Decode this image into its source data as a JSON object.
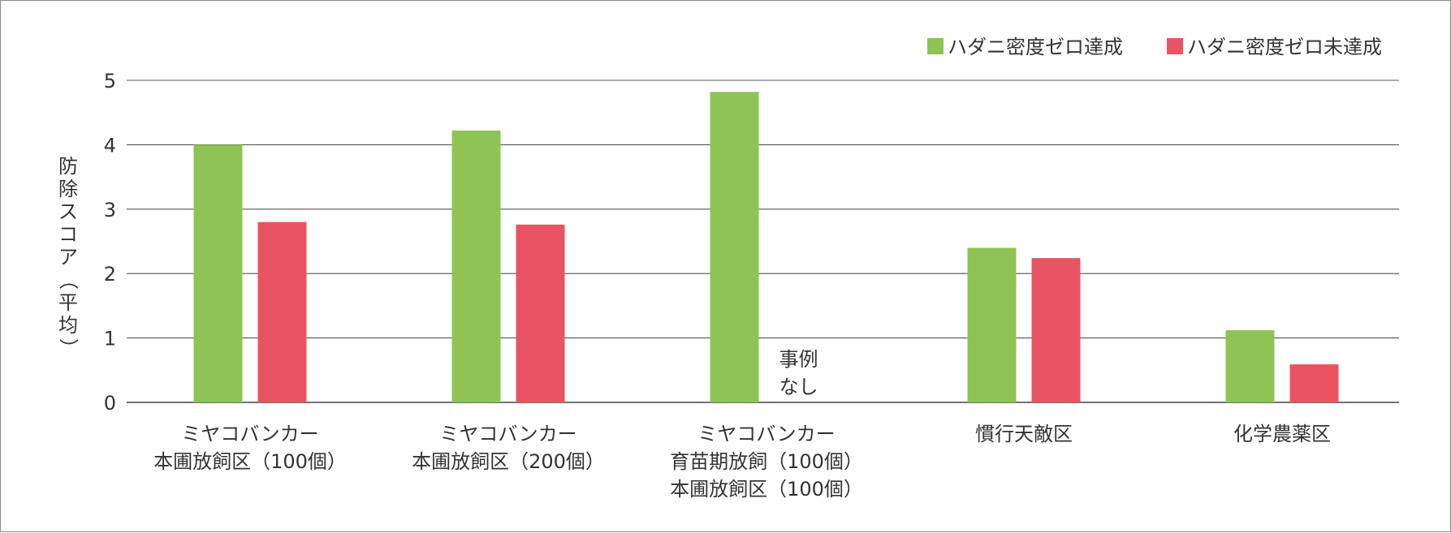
{
  "chart_data": {
    "type": "bar",
    "ylabel": "防除スコア（平均）",
    "ylim": [
      0,
      5
    ],
    "yticks": [
      "0",
      "1",
      "2",
      "3",
      "4",
      "5"
    ],
    "grid": true,
    "legend_position": "top-right",
    "categories": [
      [
        "ミヤコバンカー",
        "本圃放飼区（100個）"
      ],
      [
        "ミヤコバンカー",
        "本圃放飼区（200個）"
      ],
      [
        "ミヤコバンカー",
        "育苗期放飼（100個）",
        "本圃放飼区（100個）"
      ],
      [
        "慣行天敵区"
      ],
      [
        "化学農薬区"
      ]
    ],
    "series": [
      {
        "name": "ハダニ密度ゼロ達成",
        "color": "#8dc454",
        "values": [
          4.0,
          4.22,
          4.82,
          2.4,
          1.12
        ]
      },
      {
        "name": "ハダニ密度ゼロ未達成",
        "color": "#e95463",
        "values": [
          2.8,
          2.76,
          null,
          2.24,
          0.59
        ]
      }
    ],
    "annotations": [
      {
        "category_index": 2,
        "series_index": 1,
        "lines": [
          "事例",
          "なし"
        ]
      }
    ]
  }
}
